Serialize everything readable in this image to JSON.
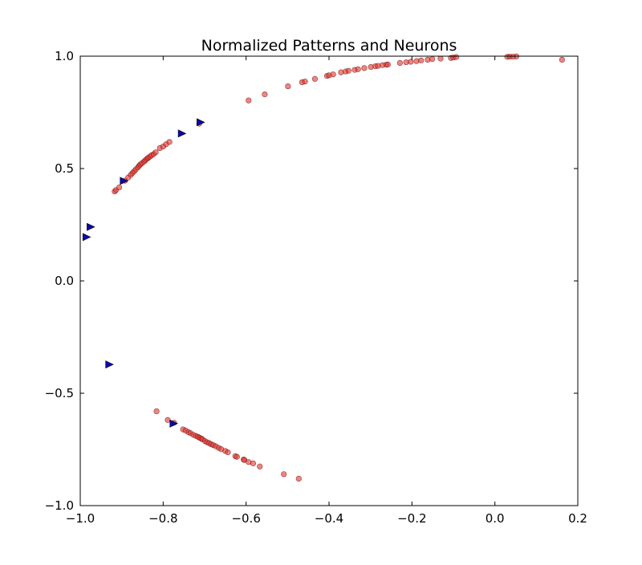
{
  "chart_data": {
    "type": "scatter",
    "title": "Normalized Patterns and Neurons",
    "xlabel": "",
    "ylabel": "",
    "xlim": [
      -1.0,
      0.2
    ],
    "ylim": [
      -1.0,
      1.0
    ],
    "xticks": [
      -1.0,
      -0.8,
      -0.6,
      -0.4,
      -0.2,
      0.0,
      0.2
    ],
    "xtick_labels": [
      "−1.0",
      "−0.8",
      "−0.6",
      "−0.4",
      "−0.2",
      "0.0",
      "0.2"
    ],
    "yticks": [
      -1.0,
      -0.5,
      0.0,
      0.5,
      1.0
    ],
    "ytick_labels": [
      "−1.0",
      "−0.5",
      "0.0",
      "0.5",
      "1.0"
    ],
    "grid": false,
    "series": [
      {
        "marker": "circle",
        "color": "#e8302a",
        "edge": "#5a1010",
        "opacity": 0.6,
        "points": [
          [
            -0.917,
            0.398
          ],
          [
            -0.914,
            0.404
          ],
          [
            -0.906,
            0.416
          ],
          [
            -0.892,
            0.446
          ],
          [
            -0.884,
            0.46
          ],
          [
            -0.878,
            0.472
          ],
          [
            -0.874,
            0.48
          ],
          [
            -0.87,
            0.488
          ],
          [
            -0.866,
            0.496
          ],
          [
            -0.861,
            0.505
          ],
          [
            -0.858,
            0.512
          ],
          [
            -0.855,
            0.518
          ],
          [
            -0.851,
            0.524
          ],
          [
            -0.846,
            0.531
          ],
          [
            -0.843,
            0.537
          ],
          [
            -0.839,
            0.543
          ],
          [
            -0.836,
            0.548
          ],
          [
            -0.832,
            0.553
          ],
          [
            -0.828,
            0.559
          ],
          [
            -0.823,
            0.564
          ],
          [
            -0.818,
            0.572
          ],
          [
            -0.808,
            0.591
          ],
          [
            -0.8,
            0.598
          ],
          [
            -0.793,
            0.608
          ],
          [
            -0.785,
            0.618
          ],
          [
            -0.713,
            0.7
          ],
          [
            -0.594,
            0.803
          ],
          [
            -0.555,
            0.83
          ],
          [
            -0.499,
            0.866
          ],
          [
            -0.465,
            0.884
          ],
          [
            -0.458,
            0.887
          ],
          [
            -0.434,
            0.899
          ],
          [
            -0.405,
            0.912
          ],
          [
            -0.4,
            0.915
          ],
          [
            -0.39,
            0.919
          ],
          [
            -0.371,
            0.928
          ],
          [
            -0.36,
            0.932
          ],
          [
            -0.353,
            0.935
          ],
          [
            -0.338,
            0.939
          ],
          [
            -0.33,
            0.942
          ],
          [
            -0.315,
            0.947
          ],
          [
            -0.299,
            0.952
          ],
          [
            -0.288,
            0.955
          ],
          [
            -0.282,
            0.957
          ],
          [
            -0.271,
            0.96
          ],
          [
            -0.262,
            0.962
          ],
          [
            -0.258,
            0.963
          ],
          [
            -0.229,
            0.97
          ],
          [
            -0.214,
            0.973
          ],
          [
            -0.203,
            0.975
          ],
          [
            -0.189,
            0.978
          ],
          [
            -0.178,
            0.981
          ],
          [
            -0.162,
            0.984
          ],
          [
            -0.151,
            0.987
          ],
          [
            -0.131,
            0.989
          ],
          [
            -0.106,
            0.992
          ],
          [
            -0.1,
            0.994
          ],
          [
            -0.093,
            0.996
          ],
          [
            0.03,
            0.997
          ],
          [
            0.036,
            0.998
          ],
          [
            0.044,
            0.998
          ],
          [
            0.052,
            0.999
          ],
          [
            0.162,
            0.984
          ],
          [
            -0.816,
            -0.58
          ],
          [
            -0.789,
            -0.619
          ],
          [
            -0.774,
            -0.631
          ],
          [
            -0.752,
            -0.661
          ],
          [
            -0.746,
            -0.666
          ],
          [
            -0.739,
            -0.673
          ],
          [
            -0.734,
            -0.678
          ],
          [
            -0.727,
            -0.685
          ],
          [
            -0.721,
            -0.69
          ],
          [
            -0.716,
            -0.694
          ],
          [
            -0.712,
            -0.698
          ],
          [
            -0.708,
            -0.702
          ],
          [
            -0.705,
            -0.705
          ],
          [
            -0.699,
            -0.713
          ],
          [
            -0.694,
            -0.718
          ],
          [
            -0.689,
            -0.722
          ],
          [
            -0.684,
            -0.727
          ],
          [
            -0.679,
            -0.731
          ],
          [
            -0.673,
            -0.736
          ],
          [
            -0.666,
            -0.743
          ],
          [
            -0.66,
            -0.749
          ],
          [
            -0.65,
            -0.757
          ],
          [
            -0.644,
            -0.763
          ],
          [
            -0.626,
            -0.78
          ],
          [
            -0.622,
            -0.783
          ],
          [
            -0.606,
            -0.795
          ],
          [
            -0.604,
            -0.797
          ],
          [
            -0.594,
            -0.806
          ],
          [
            -0.583,
            -0.812
          ],
          [
            -0.567,
            -0.826
          ],
          [
            -0.509,
            -0.86
          ],
          [
            -0.473,
            -0.88
          ]
        ]
      },
      {
        "marker": "triangle-right",
        "color": "#0a0aaa",
        "edge": "#000000",
        "opacity": 1.0,
        "points": [
          [
            -0.71,
            0.706
          ],
          [
            -0.755,
            0.656
          ],
          [
            -0.895,
            0.445
          ],
          [
            -0.975,
            0.24
          ],
          [
            -0.985,
            0.195
          ],
          [
            -0.93,
            -0.372
          ],
          [
            -0.775,
            -0.635
          ]
        ]
      }
    ]
  }
}
